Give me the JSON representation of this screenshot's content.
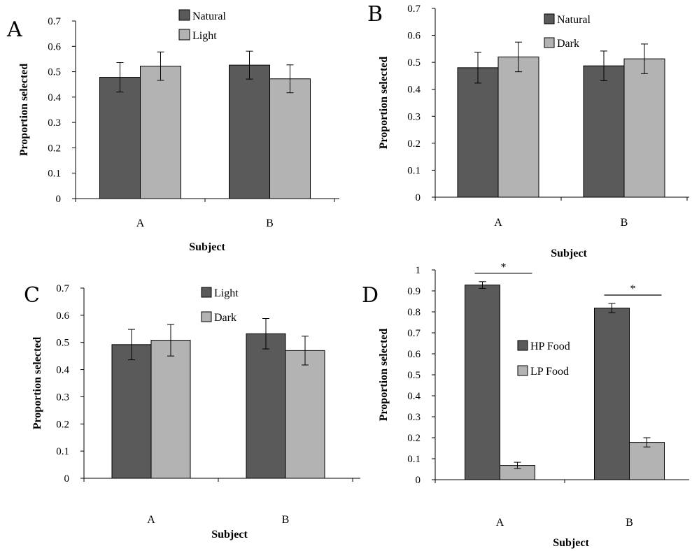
{
  "figure": {
    "colors": {
      "dark": "#5a5a5a",
      "light": "#b3b3b3",
      "line": "#000000"
    }
  },
  "chart_data": [
    {
      "panel": "A",
      "type": "bar",
      "xlabel": "Subject",
      "ylabel": "Proportion selected",
      "categories": [
        "A",
        "B"
      ],
      "ylim": [
        0,
        0.7
      ],
      "yticks": [
        "0",
        "0.1",
        "0.2",
        "0.3",
        "0.4",
        "0.5",
        "0.6",
        "0.7"
      ],
      "legend_position": "top-center",
      "series": [
        {
          "name": "Natural",
          "values": [
            0.478,
            0.526
          ],
          "errors": [
            0.058,
            0.055
          ],
          "color": "#5a5a5a"
        },
        {
          "name": "Light",
          "values": [
            0.522,
            0.472
          ],
          "errors": [
            0.056,
            0.055
          ],
          "color": "#b3b3b3"
        }
      ],
      "significance": []
    },
    {
      "panel": "B",
      "type": "bar",
      "xlabel": "Subject",
      "ylabel": "Proportion selected",
      "categories": [
        "A",
        "B"
      ],
      "ylim": [
        0,
        0.7
      ],
      "yticks": [
        "0",
        "0.1",
        "0.2",
        "0.3",
        "0.4",
        "0.5",
        "0.6",
        "0.7"
      ],
      "legend_position": "top-center",
      "series": [
        {
          "name": "Natural",
          "values": [
            0.48,
            0.487
          ],
          "errors": [
            0.057,
            0.055
          ],
          "color": "#5a5a5a"
        },
        {
          "name": "Dark",
          "values": [
            0.52,
            0.513
          ],
          "errors": [
            0.055,
            0.055
          ],
          "color": "#b3b3b3"
        }
      ],
      "significance": []
    },
    {
      "panel": "C",
      "type": "bar",
      "xlabel": "Subject",
      "ylabel": "Proportion selected",
      "categories": [
        "A",
        "B"
      ],
      "ylim": [
        0,
        0.7
      ],
      "yticks": [
        "0",
        "0.1",
        "0.2",
        "0.3",
        "0.4",
        "0.5",
        "0.6",
        "0.7"
      ],
      "legend_position": "top-center",
      "series": [
        {
          "name": "Light",
          "values": [
            0.492,
            0.532
          ],
          "errors": [
            0.056,
            0.056
          ],
          "color": "#5a5a5a"
        },
        {
          "name": "Dark",
          "values": [
            0.508,
            0.47
          ],
          "errors": [
            0.058,
            0.053
          ],
          "color": "#b3b3b3"
        }
      ],
      "significance": []
    },
    {
      "panel": "D",
      "type": "bar",
      "xlabel": "Subject",
      "ylabel": "Proportion selected",
      "categories": [
        "A",
        "B"
      ],
      "ylim": [
        0,
        1
      ],
      "yticks": [
        "0",
        "0.1",
        "0.2",
        "0.3",
        "0.4",
        "0.5",
        "0.6",
        "0.7",
        "0.8",
        "0.9",
        "1"
      ],
      "legend_position": "center",
      "series": [
        {
          "name": "HP Food",
          "values": [
            0.928,
            0.818
          ],
          "errors": [
            0.016,
            0.022
          ],
          "color": "#5a5a5a"
        },
        {
          "name": "LP Food",
          "values": [
            0.068,
            0.178
          ],
          "errors": [
            0.015,
            0.022
          ],
          "color": "#b3b3b3"
        }
      ],
      "significance": [
        {
          "category": "A",
          "label": "*"
        },
        {
          "category": "B",
          "label": "*"
        }
      ]
    }
  ]
}
